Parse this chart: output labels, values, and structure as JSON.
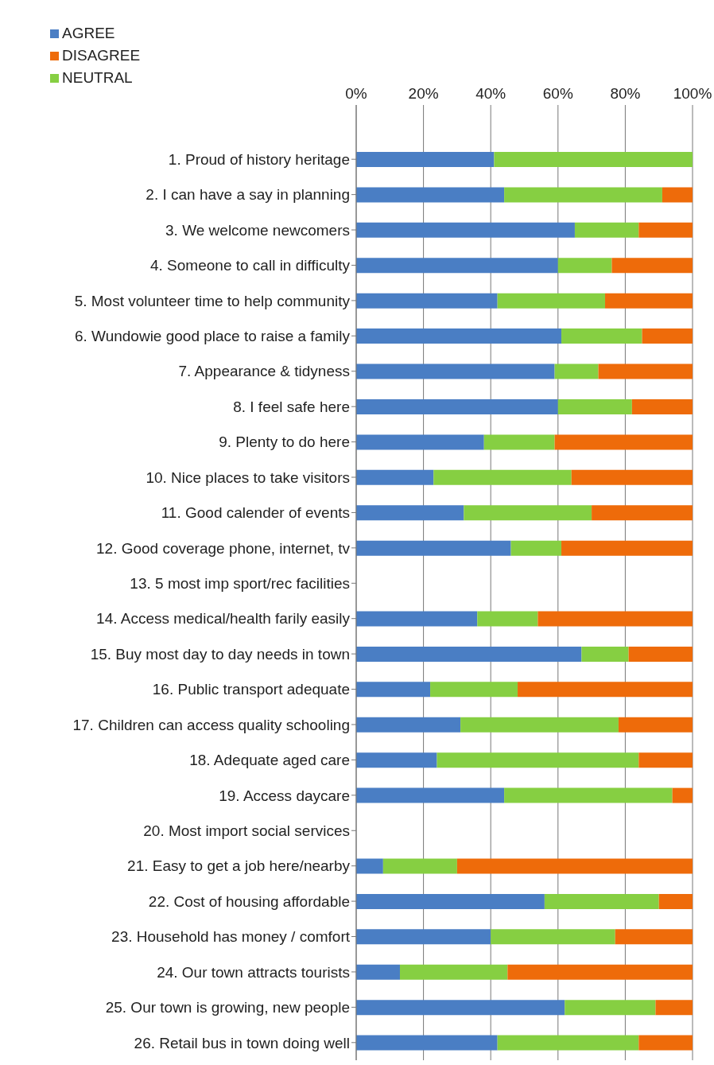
{
  "chart_data": {
    "type": "bar",
    "orientation": "horizontal",
    "stacked": true,
    "categories": [
      "1. Proud of history heritage",
      "2. I can have a say in planning",
      "3. We welcome newcomers",
      "4. Someone to call in difficulty",
      "5. Most volunteer time to help community",
      "6. Wundowie good place to raise a family",
      "7. Appearance & tidyness",
      "8. I feel safe here",
      "9. Plenty to do here",
      "10. Nice places to take visitors",
      "11. Good calender of events",
      "12. Good coverage phone, internet, tv",
      "13. 5 most imp sport/rec facilities",
      "14. Access medical/health farily easily",
      "15. Buy most day to day needs in town",
      "16. Public transport adequate",
      "17. Children can access quality schooling",
      "18. Adequate aged care",
      "19. Access daycare",
      "20. Most import social services",
      "21. Easy to get a job here/nearby",
      "22. Cost of housing affordable",
      "23. Household has  money / comfort",
      "24. Our town attracts tourists",
      "25. Our town is growing, new people",
      "26. Retail bus in town doing well"
    ],
    "series": [
      {
        "name": "AGREE",
        "color": "#4a7ec4",
        "values": [
          41,
          44,
          65,
          60,
          42,
          61,
          59,
          60,
          38,
          23,
          32,
          46,
          null,
          36,
          67,
          22,
          31,
          24,
          44,
          null,
          8,
          56,
          40,
          13,
          62,
          42
        ]
      },
      {
        "name": "NEUTRAL",
        "color": "#86cf42",
        "values": [
          59,
          47,
          19,
          16,
          32,
          24,
          13,
          22,
          21,
          41,
          38,
          15,
          null,
          18,
          14,
          26,
          47,
          60,
          50,
          null,
          22,
          34,
          37,
          32,
          27,
          42
        ]
      },
      {
        "name": "DISAGREE",
        "color": "#ee6b0a",
        "values": [
          0,
          9,
          16,
          24,
          26,
          15,
          28,
          18,
          41,
          36,
          30,
          39,
          null,
          46,
          19,
          52,
          22,
          16,
          6,
          null,
          70,
          10,
          23,
          55,
          11,
          16
        ]
      }
    ],
    "xlim": [
      0,
      100
    ],
    "xticks": [
      {
        "value": 0,
        "label": "0%"
      },
      {
        "value": 20,
        "label": "20%"
      },
      {
        "value": 40,
        "label": "40%"
      },
      {
        "value": 60,
        "label": "60%"
      },
      {
        "value": 80,
        "label": "80%"
      },
      {
        "value": 100,
        "label": "100%"
      }
    ],
    "grid": "x",
    "legend": "top left"
  }
}
